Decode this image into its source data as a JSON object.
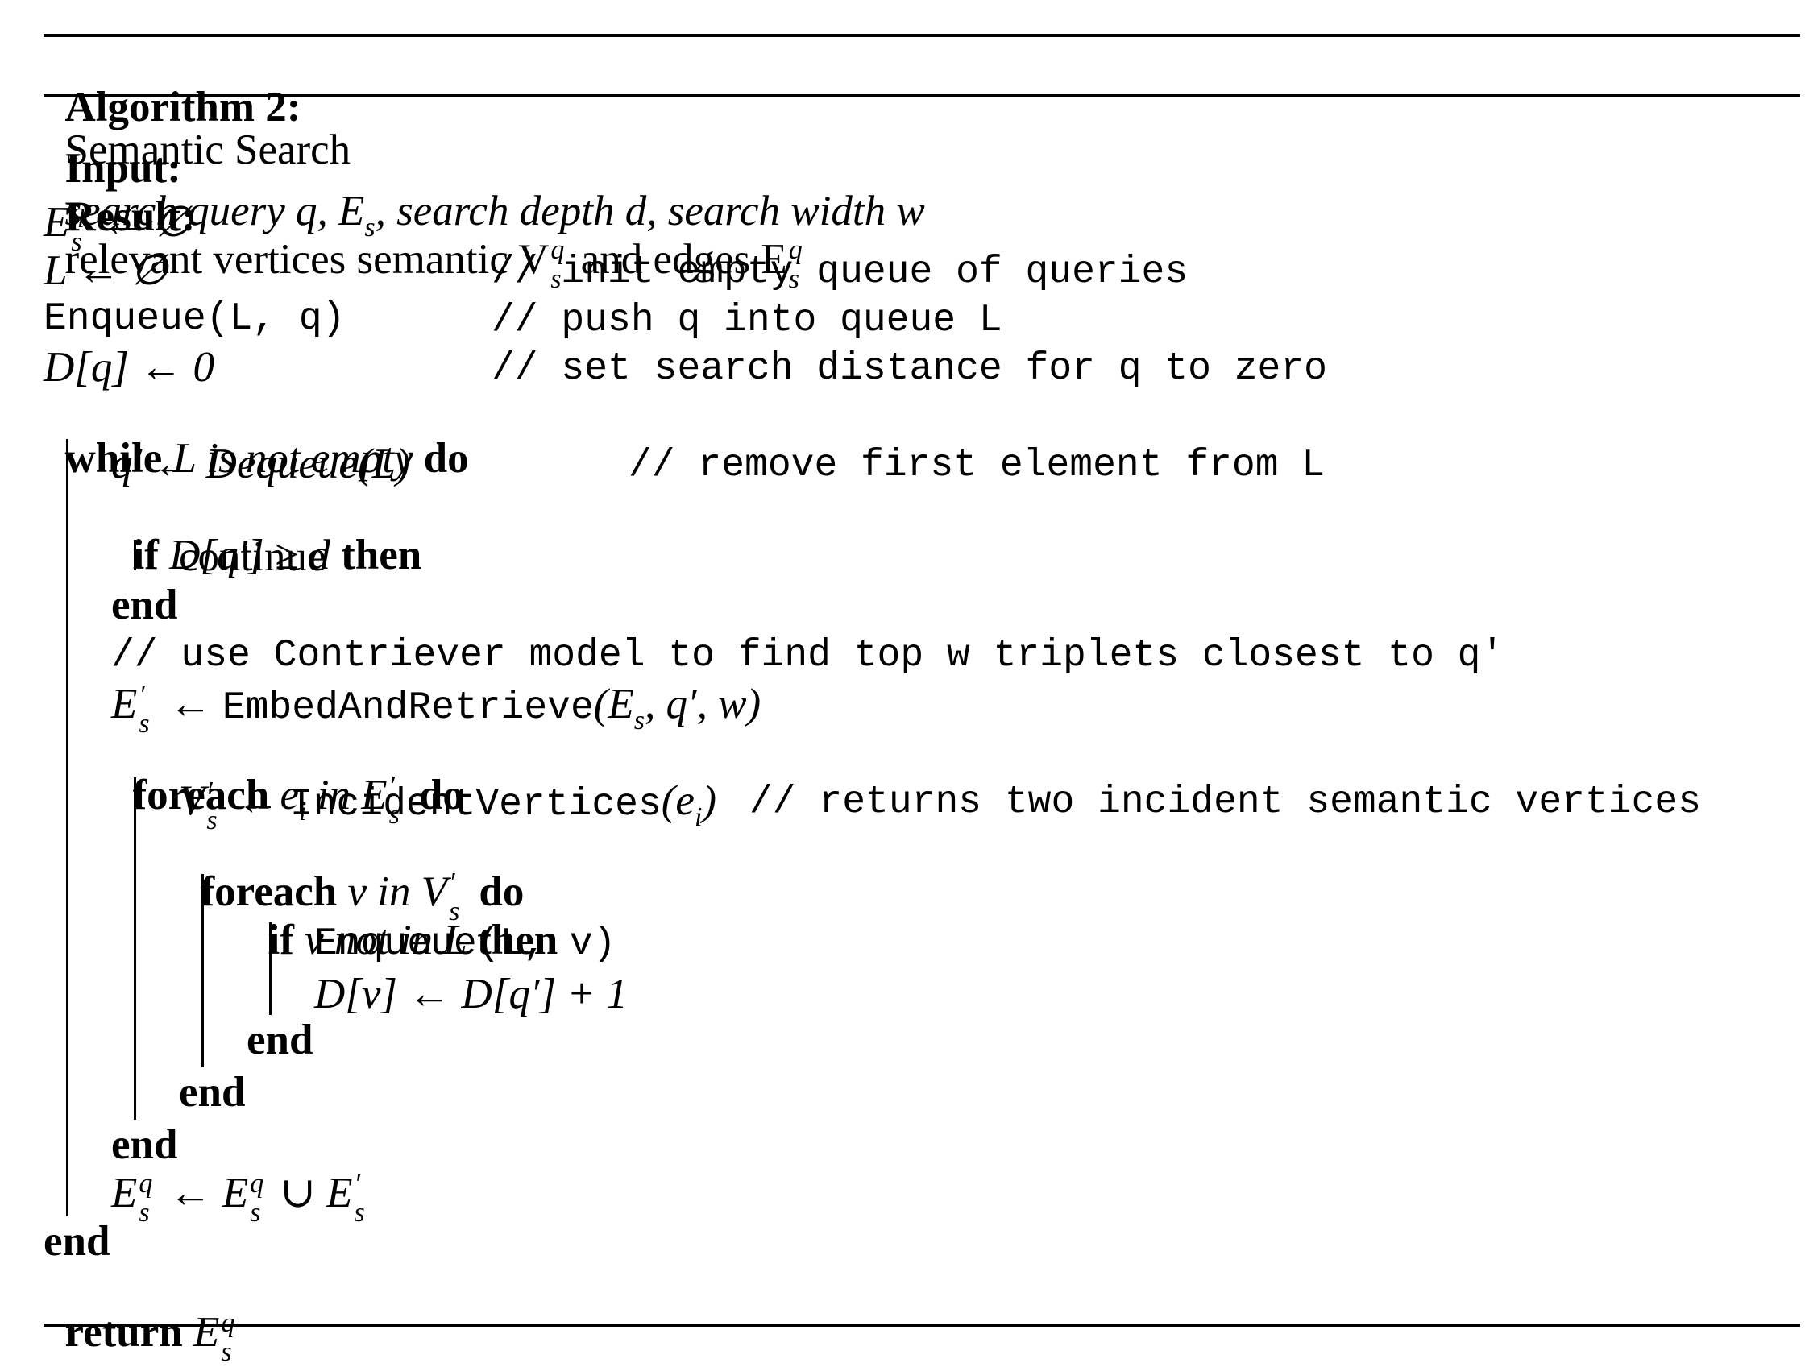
{
  "algorithm": {
    "label": "Algorithm 2:",
    "title": "Semantic Search"
  },
  "lines": {
    "input_kw": "Input:",
    "input_text": "search query q, E",
    "input_s": "s",
    "input_rest": ", search depth d, search width w",
    "result_kw": "Result:",
    "result_text": "relevant vertices semantic V",
    "result_mid": " and edges E",
    "l3": "E ← ∅",
    "l4": "L ← ∅",
    "l4c": "// init empty queue of queries",
    "l5": "Enqueue(L, q)",
    "l5c": "// push q into queue L",
    "l6": "D[q] ← 0",
    "l6c": "// set search distance for q to zero",
    "while_kw": "while",
    "while_text": " L is not empty ",
    "do_kw": "do",
    "l8": "q′ ← Dequeue(L)",
    "l8c": "// remove first element from L",
    "if_kw": "if",
    "if_text": " D[q′] ≥ d ",
    "then_kw": "then",
    "continue": "continue",
    "end_kw": "end",
    "l12c": "// use Contriever model to find top w triplets closest to q′",
    "l13": "E′ ← EmbedAndRetrieve(E, q′, w)",
    "foreach_kw": "foreach",
    "foreach1_text": " eᵢ in E′ ",
    "l15": "V′ ← IncidentVertices(eᵢ)",
    "l15c": "// returns two incident semantic vertices",
    "foreach2_text": " v in V′ ",
    "if2_text": " v not in L ",
    "l18": "Enqueue(L, v)",
    "l19": "D[v] ← D[q′] + 1",
    "l23": "E ← E ∪ E′",
    "return_kw": "return",
    "return_text": " E"
  }
}
